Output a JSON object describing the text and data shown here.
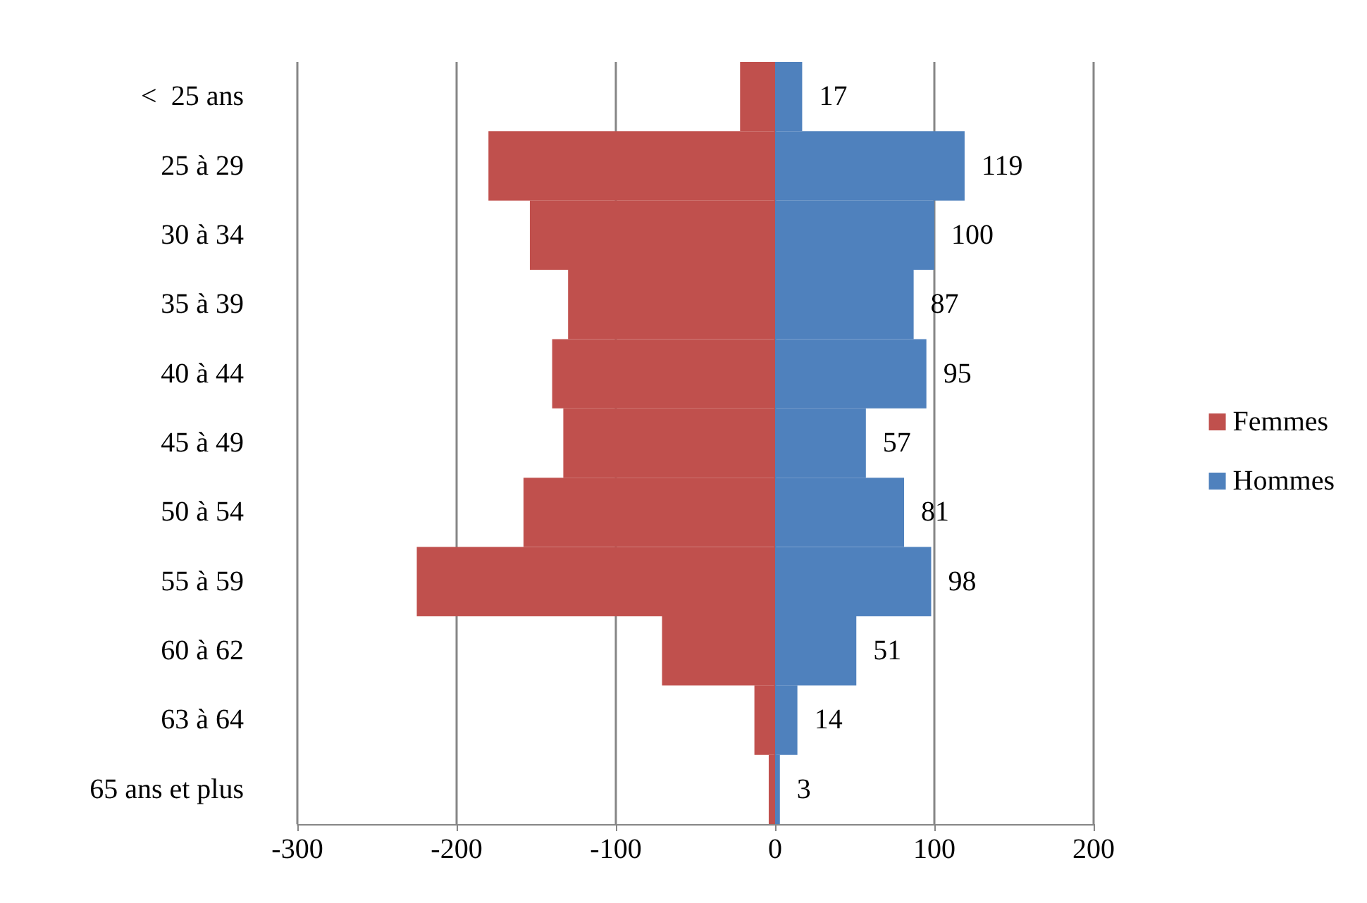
{
  "chart_data": {
    "type": "bar",
    "orientation": "horizontal",
    "categories": [
      "<  25 ans",
      "25 à 29",
      "30 à 34",
      "35 à 39",
      "40 à 44",
      "45 à 49",
      "50 à 54",
      "55 à 59",
      "60 à 62",
      "63 à 64",
      "65 ans et plus"
    ],
    "series": [
      {
        "name": "Femmes",
        "color": "#c0504d",
        "values": [
          -22,
          -180,
          -154,
          -130,
          -140,
          -133,
          -158,
          -225,
          -71,
          -13,
          -4
        ]
      },
      {
        "name": "Hommes",
        "color": "#4f81bd",
        "values": [
          17,
          119,
          100,
          87,
          95,
          57,
          81,
          98,
          51,
          14,
          3
        ],
        "value_labels": [
          "17",
          "119",
          "100",
          "87",
          "95",
          "57",
          "81",
          "98",
          "51",
          "14",
          "3"
        ]
      }
    ],
    "xlim": [
      -300,
      200
    ],
    "xticks": [
      -300,
      -200,
      -100,
      0,
      100,
      200
    ],
    "grid": "x",
    "legend": "right",
    "stacked": true
  }
}
